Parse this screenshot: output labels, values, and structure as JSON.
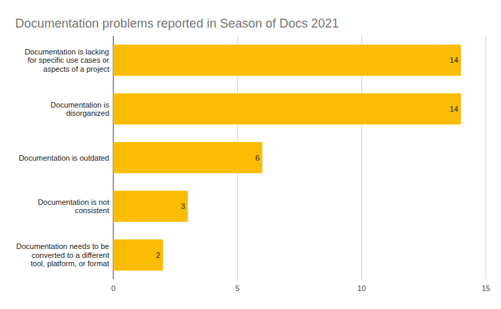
{
  "chart_data": {
    "type": "bar",
    "orientation": "horizontal",
    "title": "Documentation problems reported in Season of Docs 2021",
    "categories": [
      "Documentation is lacking for specific use cases or aspects of a project",
      "Documentation is disorganized",
      "Documentation is outdated",
      "Documentation is not consistent",
      "Documentation needs to be converted to a different tool, platform, or format"
    ],
    "values": [
      14,
      14,
      6,
      3,
      2
    ],
    "color": "#fbbc04",
    "xlim": [
      0,
      15
    ],
    "xticks": [
      0,
      5,
      10,
      15
    ],
    "grid": true,
    "data_labels": true
  }
}
